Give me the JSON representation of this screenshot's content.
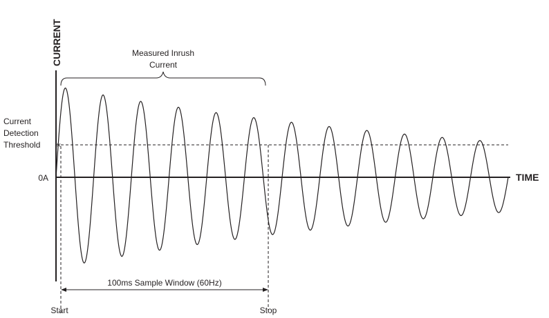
{
  "axes": {
    "y_title": "CURRENT",
    "x_title": "TIME",
    "zero_label": "0A"
  },
  "threshold": {
    "line1": "Current",
    "line2": "Detection",
    "line3": "Threshold"
  },
  "inrush": {
    "line1": "Measured Inrush",
    "line2": "Current"
  },
  "sample_window": {
    "label": "100ms Sample Window (60Hz)",
    "start_label": "Start",
    "stop_label": "Stop"
  },
  "waveform": {
    "description_free": true,
    "cycles": 12,
    "start_phase": "rising",
    "decay": "exponential",
    "peak_relative_start": 1.0,
    "peak_relative_end": 0.38
  },
  "colors": {
    "ink": "#231f20",
    "background": "#ffffff"
  }
}
